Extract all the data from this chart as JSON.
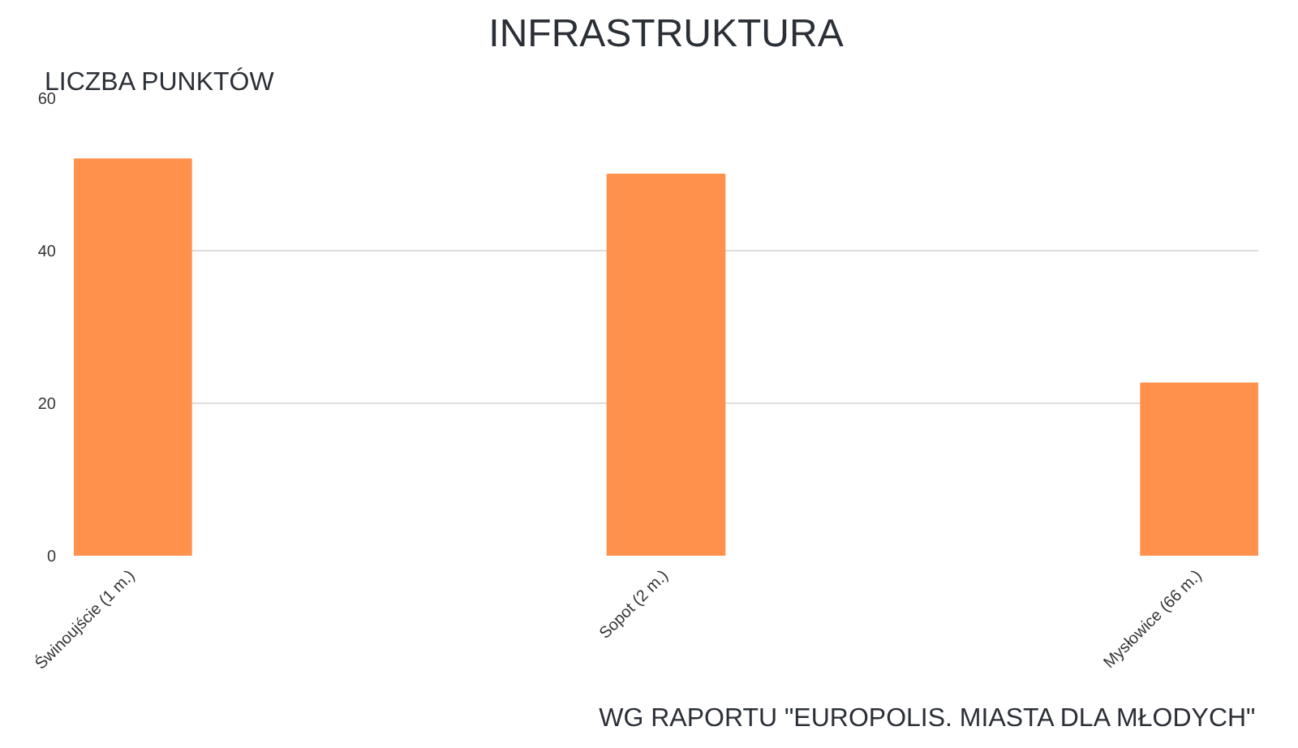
{
  "chart_data": {
    "type": "bar",
    "title": "INFRASTRUKTURA",
    "ylabel": "LICZBA PUNKTÓW",
    "categories": [
      "Świnoujście (1 m.)",
      "Sopot (2 m.)",
      "Mysłowice (66 m.)"
    ],
    "values": [
      52,
      50,
      22.6
    ],
    "color": "#ff914d",
    "ylim": [
      0,
      60
    ],
    "yticks": [
      0,
      20,
      40,
      60
    ],
    "grid": "y",
    "annotations": [
      "WG RAPORTU \"EUROPOLIS. MIASTA DLA MŁODYCH\""
    ]
  }
}
